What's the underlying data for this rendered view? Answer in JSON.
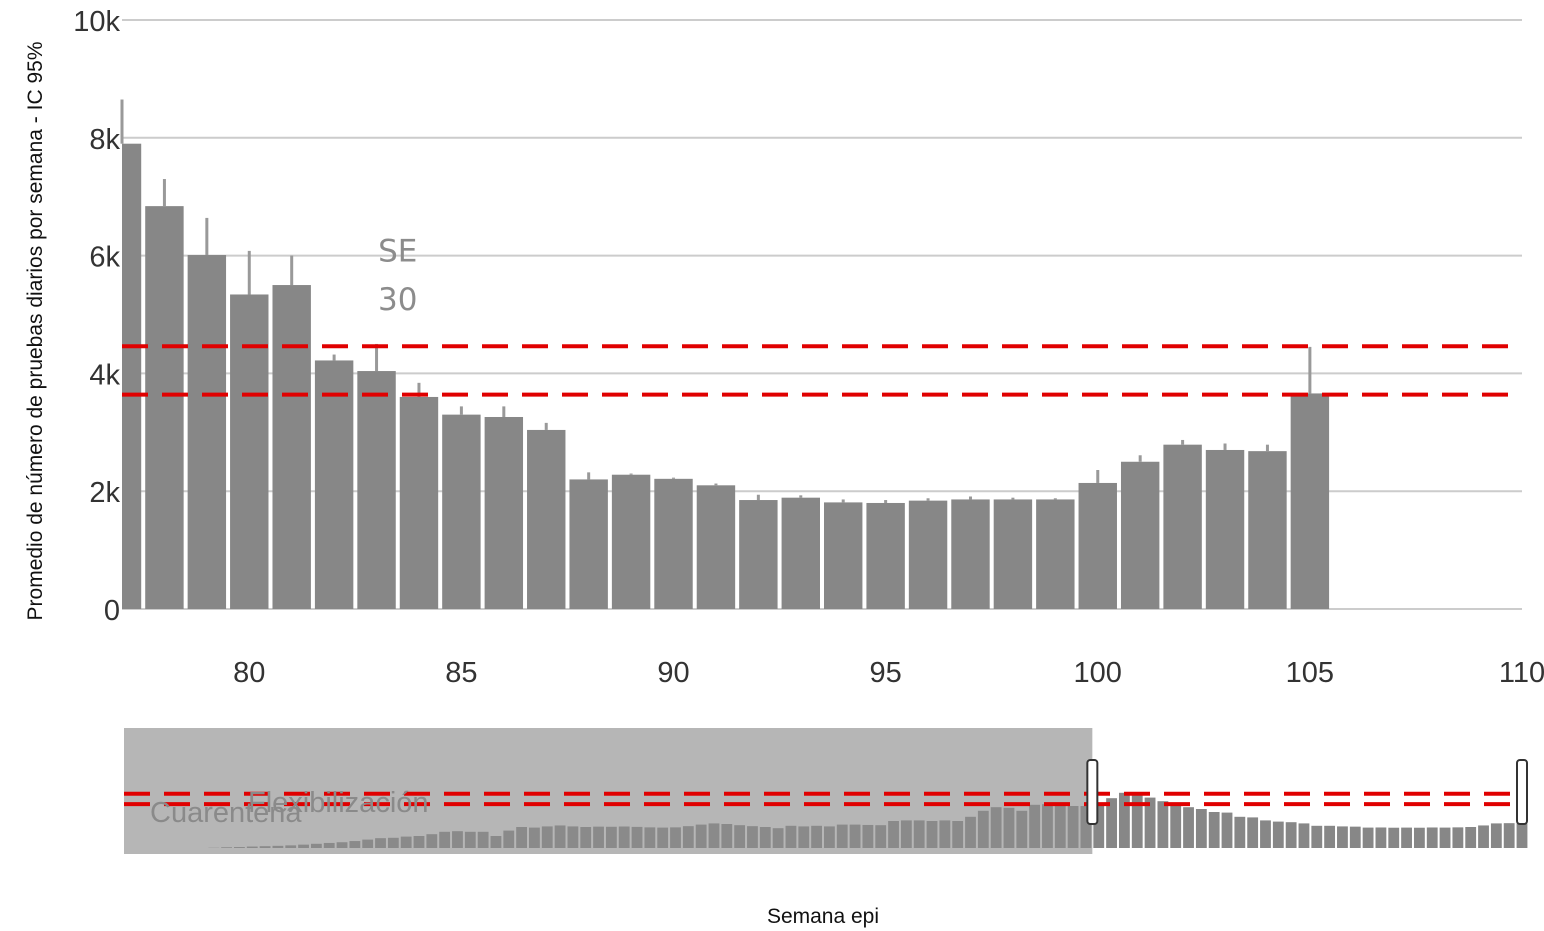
{
  "chart_data": {
    "type": "bar",
    "xlabel": "Semana epi",
    "ylabel": "Promedio de número de pruebas diarios por semana - IC 95%",
    "xlim": [
      77,
      110
    ],
    "ylim": [
      0,
      10000
    ],
    "x_ticks": [
      80,
      85,
      90,
      95,
      100,
      105,
      110
    ],
    "x_tick_labels": [
      "80",
      "85",
      "90",
      "95",
      "100",
      "105",
      "110"
    ],
    "y_ticks": [
      0,
      2000,
      4000,
      6000,
      8000,
      10000
    ],
    "y_tick_labels": [
      "0",
      "2k",
      "4k",
      "6k",
      "8k",
      "10k"
    ],
    "grid": true,
    "colors": {
      "bar": "#878787",
      "error_bar": "#999999",
      "reference_line": "#e00000",
      "grid": "#cccccc",
      "range_mask": "#9e9e9e",
      "range_selected_bar": "#505050",
      "range_handle": "#ffffff"
    },
    "series": [
      {
        "x": [
          77,
          78,
          79,
          80,
          81,
          82,
          83,
          84,
          85,
          86,
          87,
          88,
          89,
          90,
          91,
          92,
          93,
          94,
          95,
          96,
          97,
          98,
          99,
          100,
          101,
          102,
          103,
          104,
          105
        ],
        "values": [
          7900,
          6840,
          6010,
          5340,
          5500,
          4220,
          4040,
          3600,
          3300,
          3260,
          3040,
          2200,
          2280,
          2210,
          2100,
          1850,
          1890,
          1810,
          1800,
          1840,
          1860,
          1860,
          1860,
          2140,
          2500,
          2790,
          2700,
          2680,
          3660
        ],
        "error_high": [
          8650,
          7300,
          6640,
          6080,
          6000,
          4320,
          4500,
          3840,
          3440,
          3440,
          3160,
          2320,
          2300,
          2230,
          2130,
          1940,
          1930,
          1860,
          1850,
          1880,
          1910,
          1890,
          1880,
          2360,
          2610,
          2870,
          2810,
          2790,
          4450
        ]
      }
    ],
    "reference_lines": [
      {
        "axis": "y",
        "value": 4460,
        "style": "dashed"
      },
      {
        "axis": "y",
        "value": 3640,
        "style": "dashed"
      }
    ],
    "annotations": [
      {
        "text": "SE",
        "x": 83.5,
        "y": 5900
      },
      {
        "text": "30",
        "x": 83.5,
        "y": 5080
      }
    ],
    "range_slider": {
      "x_range": [
        1,
        110
      ],
      "selected_range": [
        77,
        110
      ],
      "values": [
        0,
        0,
        0,
        0,
        0,
        0,
        0,
        20,
        60,
        80,
        120,
        150,
        180,
        220,
        280,
        350,
        420,
        480,
        580,
        700,
        820,
        850,
        950,
        1000,
        1150,
        1350,
        1400,
        1350,
        1350,
        1000,
        1450,
        1750,
        1700,
        1800,
        1880,
        1800,
        1750,
        1780,
        1770,
        1790,
        1760,
        1720,
        1700,
        1720,
        1820,
        1950,
        2050,
        2000,
        1900,
        1820,
        1750,
        1650,
        1850,
        1800,
        1850,
        1800,
        1950,
        1950,
        1920,
        1900,
        2250,
        2300,
        2300,
        2250,
        2300,
        2250,
        2600,
        3100,
        3400,
        3350,
        3100,
        3600,
        3650,
        3600,
        3500,
        3500,
        3500,
        4150,
        4600,
        4650,
        4200,
        3900,
        3550,
        3400,
        3250,
        3000,
        2950,
        2600,
        2550,
        2300,
        2200,
        2150,
        2050,
        1850,
        1850,
        1800,
        1780,
        1700,
        1710,
        1690,
        1700,
        1690,
        1710,
        1700,
        1720,
        1750,
        1880,
        2050,
        2070,
        2050
      ],
      "labels": [
        "Cuarentena",
        "Flexibilización"
      ]
    }
  }
}
